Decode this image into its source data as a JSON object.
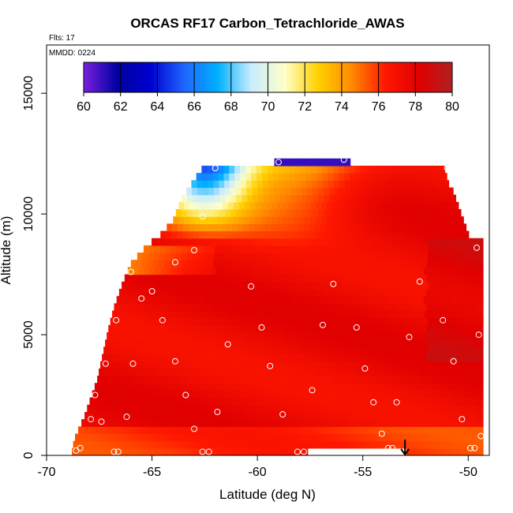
{
  "chart_data": {
    "type": "heatmap",
    "title": "ORCAS RF17 Carbon_Tetrachloride_AWAS",
    "flights_label": "Flts: 17",
    "date_label": "MMDD: 0224",
    "xlabel": "Latitude (deg N)",
    "ylabel": "Altitude (m)",
    "xlim": [
      -70,
      -49
    ],
    "ylim": [
      0,
      17000
    ],
    "x_ticks": [
      -70,
      -65,
      -60,
      -55,
      -50
    ],
    "y_ticks": [
      0,
      5000,
      10000,
      15000
    ],
    "colorbar": {
      "min": 60,
      "max": 80,
      "ticks": [
        60,
        62,
        64,
        66,
        68,
        70,
        72,
        74,
        76,
        78,
        80
      ],
      "stops": [
        "#7a20e0",
        "#0000a0",
        "#0000d0",
        "#1e66ff",
        "#00b0ff",
        "#c8ecff",
        "#ffffc8",
        "#ffd000",
        "#ff8a00",
        "#ff1800",
        "#e00000",
        "#b02020"
      ]
    },
    "grid": false,
    "data_extent": {
      "lat_min": -68.8,
      "lat_max": -49.5,
      "alt_min": 0,
      "alt_max": 12200
    },
    "samples": [
      {
        "lat": -68.6,
        "alt": 200
      },
      {
        "lat": -68.4,
        "alt": 300
      },
      {
        "lat": -67.9,
        "alt": 1500
      },
      {
        "lat": -67.7,
        "alt": 2500
      },
      {
        "lat": -67.4,
        "alt": 1400
      },
      {
        "lat": -67.2,
        "alt": 3800
      },
      {
        "lat": -66.8,
        "alt": 150
      },
      {
        "lat": -66.6,
        "alt": 150
      },
      {
        "lat": -66.7,
        "alt": 5600
      },
      {
        "lat": -66.2,
        "alt": 1600
      },
      {
        "lat": -65.9,
        "alt": 3800
      },
      {
        "lat": -66.0,
        "alt": 7600
      },
      {
        "lat": -65.5,
        "alt": 6500
      },
      {
        "lat": -65.0,
        "alt": 6800
      },
      {
        "lat": -64.5,
        "alt": 5600
      },
      {
        "lat": -63.9,
        "alt": 8000
      },
      {
        "lat": -63.9,
        "alt": 3900
      },
      {
        "lat": -63.4,
        "alt": 2500
      },
      {
        "lat": -63.0,
        "alt": 1100
      },
      {
        "lat": -63.0,
        "alt": 8500
      },
      {
        "lat": -62.6,
        "alt": 9900
      },
      {
        "lat": -62.6,
        "alt": 150
      },
      {
        "lat": -62.3,
        "alt": 150
      },
      {
        "lat": -62.0,
        "alt": 11900
      },
      {
        "lat": -61.9,
        "alt": 1800
      },
      {
        "lat": -61.4,
        "alt": 4600
      },
      {
        "lat": -60.3,
        "alt": 7000
      },
      {
        "lat": -59.8,
        "alt": 5300
      },
      {
        "lat": -59.4,
        "alt": 3700
      },
      {
        "lat": -59.0,
        "alt": 12150
      },
      {
        "lat": -58.8,
        "alt": 1700
      },
      {
        "lat": -58.1,
        "alt": 150
      },
      {
        "lat": -57.8,
        "alt": 150
      },
      {
        "lat": -57.4,
        "alt": 2700
      },
      {
        "lat": -56.9,
        "alt": 5400
      },
      {
        "lat": -56.4,
        "alt": 7100
      },
      {
        "lat": -55.9,
        "alt": 12250
      },
      {
        "lat": -55.3,
        "alt": 5300
      },
      {
        "lat": -54.9,
        "alt": 3600
      },
      {
        "lat": -54.5,
        "alt": 2200
      },
      {
        "lat": -54.1,
        "alt": 900
      },
      {
        "lat": -53.8,
        "alt": 300
      },
      {
        "lat": -53.6,
        "alt": 300
      },
      {
        "lat": -53.4,
        "alt": 2200
      },
      {
        "lat": -52.8,
        "alt": 4900
      },
      {
        "lat": -52.3,
        "alt": 7200
      },
      {
        "lat": -51.2,
        "alt": 5600
      },
      {
        "lat": -51.0,
        "alt": 11900
      },
      {
        "lat": -50.7,
        "alt": 3900
      },
      {
        "lat": -50.3,
        "alt": 1500
      },
      {
        "lat": -49.9,
        "alt": 300
      },
      {
        "lat": -49.7,
        "alt": 300
      },
      {
        "lat": -49.6,
        "alt": 8600
      },
      {
        "lat": -49.5,
        "alt": 5000
      },
      {
        "lat": -49.4,
        "alt": 800
      }
    ],
    "arrow_marker": {
      "lat": -53.0,
      "alt_from": 650,
      "alt_to": 0
    }
  }
}
